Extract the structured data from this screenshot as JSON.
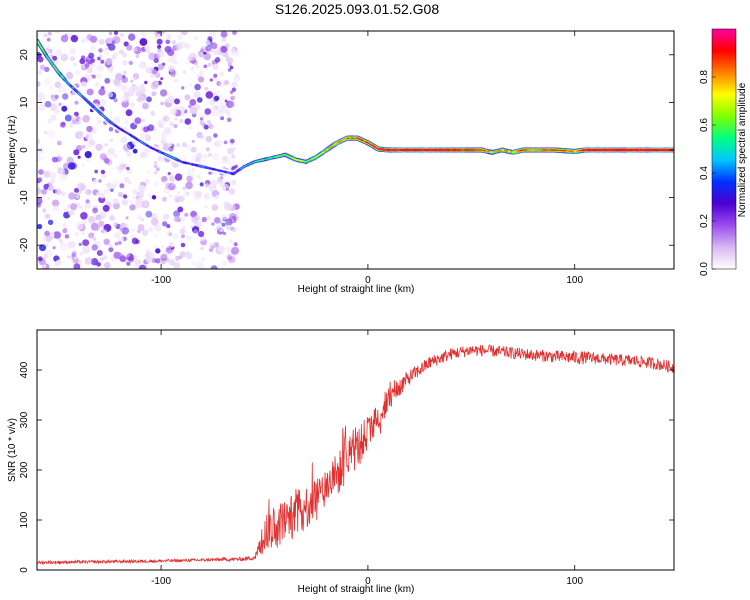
{
  "title": "S126.2025.093.01.52.G08",
  "chart_data": [
    {
      "type": "heatmap",
      "xlabel": "Height of straight line (km)",
      "ylabel": "Frequency (Hz)",
      "xlim": [
        -160,
        148
      ],
      "ylim": [
        -25,
        25
      ],
      "xticks": [
        -100,
        0,
        100
      ],
      "yticks": [
        20,
        10,
        0,
        -10,
        -20
      ],
      "colorbar": {
        "label": "Normalized spectral amplitude",
        "range": [
          0,
          1
        ],
        "ticks": [
          "0.0",
          "0.2",
          "0.4",
          "0.6",
          "0.8"
        ],
        "colormap": [
          "#ffffff",
          "#d9b8f2",
          "#9b4df0",
          "#4c00d0",
          "#0030ff",
          "#00c8ff",
          "#00ff80",
          "#80ff00",
          "#ffff00",
          "#ff8000",
          "#ff0000",
          "#ff00a0"
        ]
      },
      "noise_region": [
        -160,
        -63
      ],
      "ridge": [
        {
          "x": -160,
          "y": 23.0,
          "a": 0.5
        },
        {
          "x": -155,
          "y": 19.5,
          "a": 0.4
        },
        {
          "x": -150,
          "y": 16.5,
          "a": 0.45
        },
        {
          "x": -145,
          "y": 14.0,
          "a": 0.3
        },
        {
          "x": -140,
          "y": 12.0,
          "a": 0.25
        },
        {
          "x": -135,
          "y": 10.0,
          "a": 0.3
        },
        {
          "x": -130,
          "y": 8.0,
          "a": 0.3
        },
        {
          "x": -125,
          "y": 6.0,
          "a": 0.25
        },
        {
          "x": -120,
          "y": 4.5,
          "a": 0.2
        },
        {
          "x": -115,
          "y": 3.2,
          "a": 0.2
        },
        {
          "x": -110,
          "y": 1.8,
          "a": 0.25
        },
        {
          "x": -105,
          "y": 0.5,
          "a": 0.2
        },
        {
          "x": -100,
          "y": -0.5,
          "a": 0.25
        },
        {
          "x": -95,
          "y": -1.5,
          "a": 0.3
        },
        {
          "x": -90,
          "y": -2.5,
          "a": 0.2
        },
        {
          "x": -85,
          "y": -3.0,
          "a": 0.2
        },
        {
          "x": -80,
          "y": -3.5,
          "a": 0.25
        },
        {
          "x": -75,
          "y": -4.0,
          "a": 0.2
        },
        {
          "x": -70,
          "y": -4.5,
          "a": 0.2
        },
        {
          "x": -65,
          "y": -5.0,
          "a": 0.25
        },
        {
          "x": -60,
          "y": -3.5,
          "a": 0.3
        },
        {
          "x": -55,
          "y": -2.5,
          "a": 0.35
        },
        {
          "x": -50,
          "y": -2.0,
          "a": 0.4
        },
        {
          "x": -45,
          "y": -1.5,
          "a": 0.45
        },
        {
          "x": -40,
          "y": -1.0,
          "a": 0.5
        },
        {
          "x": -35,
          "y": -2.0,
          "a": 0.55
        },
        {
          "x": -30,
          "y": -2.5,
          "a": 0.5
        },
        {
          "x": -25,
          "y": -1.5,
          "a": 0.55
        },
        {
          "x": -20,
          "y": 0.0,
          "a": 0.6
        },
        {
          "x": -15,
          "y": 1.5,
          "a": 0.65
        },
        {
          "x": -10,
          "y": 2.5,
          "a": 0.7
        },
        {
          "x": -5,
          "y": 2.5,
          "a": 0.75
        },
        {
          "x": 0,
          "y": 1.5,
          "a": 0.75
        },
        {
          "x": 5,
          "y": 0.2,
          "a": 0.8
        },
        {
          "x": 10,
          "y": 0.0,
          "a": 0.85
        },
        {
          "x": 20,
          "y": 0.0,
          "a": 0.9
        },
        {
          "x": 30,
          "y": 0.0,
          "a": 0.9
        },
        {
          "x": 40,
          "y": 0.0,
          "a": 0.85
        },
        {
          "x": 50,
          "y": 0.0,
          "a": 0.8
        },
        {
          "x": 55,
          "y": 0.0,
          "a": 0.75
        },
        {
          "x": 60,
          "y": -0.5,
          "a": 0.6
        },
        {
          "x": 65,
          "y": 0.0,
          "a": 0.65
        },
        {
          "x": 70,
          "y": -0.5,
          "a": 0.6
        },
        {
          "x": 75,
          "y": 0.0,
          "a": 0.75
        },
        {
          "x": 80,
          "y": 0.0,
          "a": 0.7
        },
        {
          "x": 90,
          "y": 0.0,
          "a": 0.8
        },
        {
          "x": 100,
          "y": -0.3,
          "a": 0.65
        },
        {
          "x": 105,
          "y": 0.0,
          "a": 0.9
        },
        {
          "x": 110,
          "y": 0.0,
          "a": 0.9
        },
        {
          "x": 120,
          "y": 0.0,
          "a": 0.9
        },
        {
          "x": 130,
          "y": 0.0,
          "a": 0.9
        },
        {
          "x": 140,
          "y": 0.0,
          "a": 0.9
        },
        {
          "x": 148,
          "y": 0.0,
          "a": 0.9
        }
      ]
    },
    {
      "type": "line",
      "xlabel": "Height of straight line (km)",
      "ylabel": "SNR (10 * v/v)",
      "xlim": [
        -160,
        148
      ],
      "ylim": [
        0,
        480
      ],
      "xticks": [
        -100,
        0,
        100
      ],
      "yticks": [
        0,
        100,
        200,
        300,
        400
      ],
      "color": "#e03030",
      "x": [
        -160,
        -140,
        -120,
        -100,
        -80,
        -60,
        -55,
        -52,
        -50,
        -45,
        -40,
        -35,
        -30,
        -25,
        -20,
        -15,
        -10,
        -5,
        0,
        5,
        10,
        15,
        20,
        25,
        30,
        40,
        50,
        60,
        70,
        80,
        90,
        100,
        110,
        120,
        130,
        140,
        148
      ],
      "y": [
        15,
        16,
        17,
        18,
        20,
        22,
        25,
        40,
        75,
        85,
        100,
        110,
        125,
        145,
        165,
        190,
        215,
        245,
        275,
        305,
        340,
        365,
        385,
        400,
        415,
        432,
        440,
        438,
        434,
        430,
        427,
        425,
        424,
        420,
        418,
        412,
        405
      ],
      "noise": [
        3,
        3,
        3,
        3,
        3,
        4,
        5,
        25,
        40,
        45,
        45,
        45,
        45,
        45,
        45,
        45,
        40,
        40,
        35,
        30,
        25,
        20,
        15,
        14,
        13,
        12,
        12,
        12,
        12,
        12,
        12,
        14,
        12,
        12,
        12,
        12,
        12
      ]
    }
  ]
}
